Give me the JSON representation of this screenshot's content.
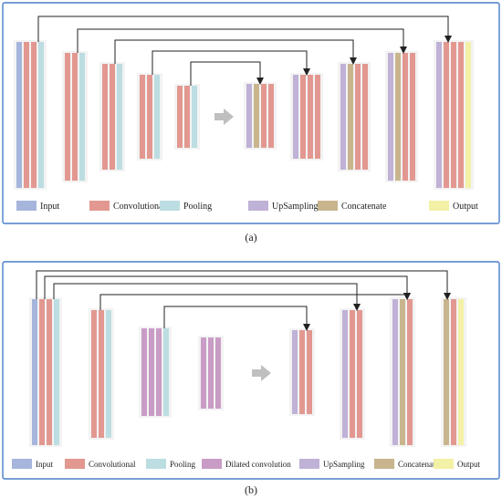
{
  "colors": {
    "frame": "#4a7ec9",
    "input": "#a6b5dc",
    "convolutional": "#e29890",
    "pooling": "#bcdde1",
    "dilated_convolution": "#c99cc6",
    "upsampling": "#c0b1d6",
    "concatenate": "#c8b58d",
    "output": "#f3f1a6",
    "arrow": "#222222",
    "block_arrow": "#bfbfbf"
  },
  "panel_a": {
    "caption": "(a)",
    "legend": [
      {
        "key": "input",
        "label": "Input",
        "icon": "input-swatch"
      },
      {
        "key": "convolutional",
        "label": "Convolutional",
        "icon": "convolutional-swatch"
      },
      {
        "key": "pooling",
        "label": "Pooling",
        "icon": "pooling-swatch"
      },
      {
        "key": "upsampling",
        "label": "UpSampling",
        "icon": "upsampling-swatch"
      },
      {
        "key": "concatenate",
        "label": "Concatenate",
        "icon": "concatenate-swatch"
      },
      {
        "key": "output",
        "label": "Output",
        "icon": "output-swatch"
      }
    ]
  },
  "panel_b": {
    "caption": "(b)",
    "legend": [
      {
        "key": "input",
        "label": "Input",
        "icon": "input-swatch"
      },
      {
        "key": "convolutional",
        "label": "Convolutional",
        "icon": "convolutional-swatch"
      },
      {
        "key": "pooling",
        "label": "Pooling",
        "icon": "pooling-swatch"
      },
      {
        "key": "dilated_convolution",
        "label": "Dilated convolution",
        "icon": "dilated-convolution-swatch"
      },
      {
        "key": "upsampling",
        "label": "UpSampling",
        "icon": "upsampling-swatch"
      },
      {
        "key": "concatenate",
        "label": "Concatenate",
        "icon": "concatenate-swatch"
      },
      {
        "key": "output",
        "label": "Output",
        "icon": "output-swatch"
      }
    ]
  }
}
